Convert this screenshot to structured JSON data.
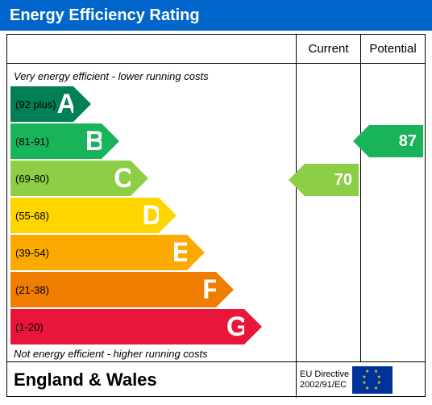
{
  "title": "Energy Efficiency Rating",
  "title_bar_color": "#0066cc",
  "title_fontsize": 20,
  "columns": {
    "current": "Current",
    "potential": "Potential"
  },
  "caption_top": "Very energy efficient - lower running costs",
  "caption_bottom": "Not energy efficient - higher running costs",
  "bands": [
    {
      "letter": "A",
      "range": "(92 plus)",
      "color": "#008054",
      "width_pct": 22
    },
    {
      "letter": "B",
      "range": "(81-91)",
      "color": "#19b459",
      "width_pct": 32
    },
    {
      "letter": "C",
      "range": "(69-80)",
      "color": "#8dce46",
      "width_pct": 42
    },
    {
      "letter": "D",
      "range": "(55-68)",
      "color": "#ffd500",
      "width_pct": 52
    },
    {
      "letter": "E",
      "range": "(39-54)",
      "color": "#fcaa00",
      "width_pct": 62
    },
    {
      "letter": "F",
      "range": "(21-38)",
      "color": "#ef7d00",
      "width_pct": 72
    },
    {
      "letter": "G",
      "range": "(1-20)",
      "color": "#e9153b",
      "width_pct": 82
    }
  ],
  "band_height": 44,
  "current": {
    "value": "70",
    "band_index": 2,
    "color": "#8dce46"
  },
  "potential": {
    "value": "87",
    "band_index": 1,
    "color": "#19b459"
  },
  "footer": {
    "region": "England & Wales",
    "directive_label": "EU Directive",
    "directive_code": "2002/91/EC"
  },
  "eu_flag": {
    "bg": "#003399",
    "star_color": "#ffcc00"
  }
}
